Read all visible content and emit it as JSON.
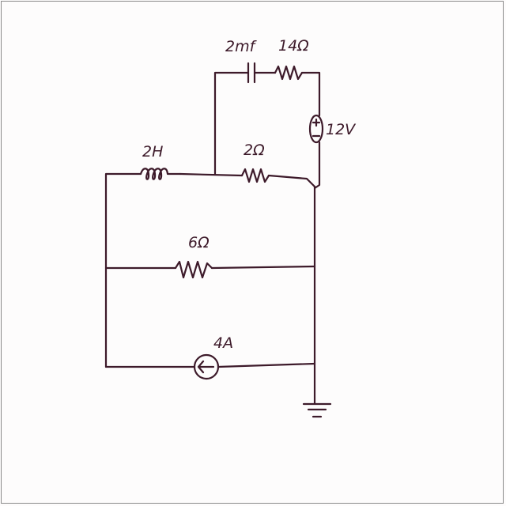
{
  "colors": {
    "ink": "#3d1a2a",
    "paper": "#fdfcfc",
    "border": "#8a8a8a"
  },
  "components": {
    "capacitor": {
      "label": "2mf"
    },
    "resistor_top": {
      "label": "14Ω"
    },
    "voltage_source": {
      "label": "12V"
    },
    "inductor": {
      "label": "2H"
    },
    "resistor_middle": {
      "label": "2Ω"
    },
    "resistor_lower": {
      "label": "6Ω"
    },
    "current_source": {
      "label": "4A"
    }
  }
}
